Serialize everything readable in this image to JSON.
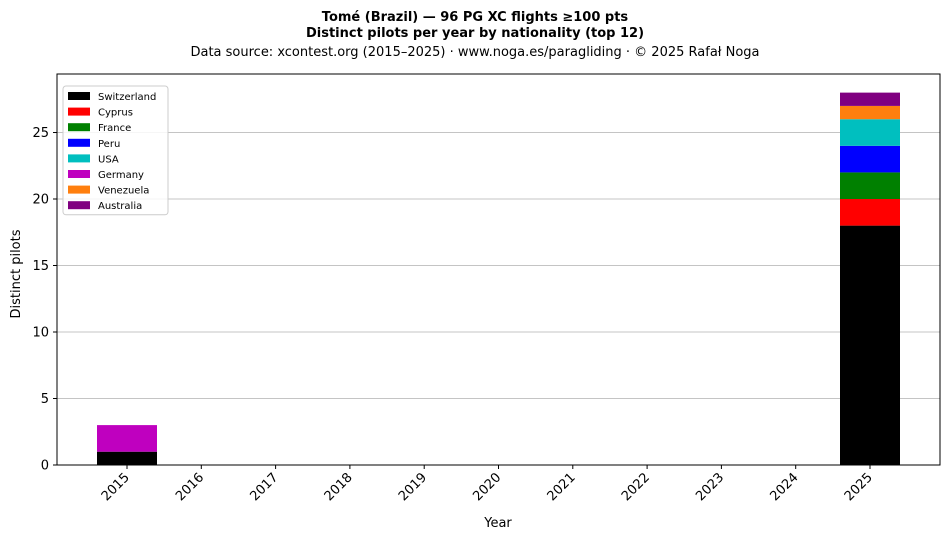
{
  "chart_data": {
    "type": "bar",
    "stacked": true,
    "title": "Tomé (Brazil)  —  96 PG XC flights ≥100 pts",
    "subtitle": "Distinct pilots per year by nationality (top 12)",
    "source": "Data source: xcontest.org (2015–2025)  ·  www.noga.es/paragliding  ·  © 2025 Rafał Noga",
    "xlabel": "Year",
    "ylabel": "Distinct pilots",
    "ylim": [
      0,
      29.4
    ],
    "yticks": [
      0,
      5,
      10,
      15,
      20,
      25
    ],
    "grid": "horizontal",
    "legend_position": "top-left",
    "categories": [
      "2015",
      "2016",
      "2017",
      "2018",
      "2019",
      "2020",
      "2021",
      "2022",
      "2023",
      "2024",
      "2025"
    ],
    "series": [
      {
        "name": "Switzerland",
        "color": "#000000",
        "values": [
          1,
          0,
          0,
          0,
          0,
          0,
          0,
          0,
          0,
          0,
          18
        ]
      },
      {
        "name": "Cyprus",
        "color": "#ff0000",
        "values": [
          0,
          0,
          0,
          0,
          0,
          0,
          0,
          0,
          0,
          0,
          2
        ]
      },
      {
        "name": "France",
        "color": "#008000",
        "values": [
          0,
          0,
          0,
          0,
          0,
          0,
          0,
          0,
          0,
          0,
          2
        ]
      },
      {
        "name": "Peru",
        "color": "#0000ff",
        "values": [
          0,
          0,
          0,
          0,
          0,
          0,
          0,
          0,
          0,
          0,
          2
        ]
      },
      {
        "name": "USA",
        "color": "#00bfbf",
        "values": [
          0,
          0,
          0,
          0,
          0,
          0,
          0,
          0,
          0,
          0,
          2
        ]
      },
      {
        "name": "Germany",
        "color": "#bf00bf",
        "values": [
          2,
          0,
          0,
          0,
          0,
          0,
          0,
          0,
          0,
          0,
          0
        ]
      },
      {
        "name": "Venezuela",
        "color": "#ff7f0e",
        "values": [
          0,
          0,
          0,
          0,
          0,
          0,
          0,
          0,
          0,
          0,
          1
        ]
      },
      {
        "name": "Australia",
        "color": "#800080",
        "values": [
          0,
          0,
          0,
          0,
          0,
          0,
          0,
          0,
          0,
          0,
          1
        ]
      }
    ]
  }
}
